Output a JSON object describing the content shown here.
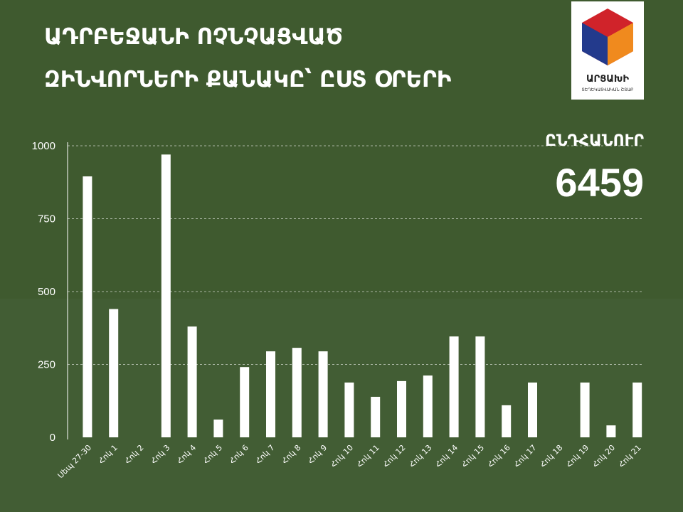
{
  "chart_data": {
    "type": "bar",
    "title": [
      "ԱԴՐԲԵՋԱՆԻ ՈՉՆՉԱՑՎԱԾ",
      "ԶԻՆՎՈՐՆԵՐԻ ՔԱՆԱԿԸ՝ ԸՍՏ ՕՐԵՐԻ"
    ],
    "total_label": "ԸՆԴՀԱՆՈՒՐ",
    "total": 6459,
    "categories": [
      "Սեպ 27-30",
      "Հոկ 1",
      "Հոկ 2",
      "Հոկ 3",
      "Հոկ 4",
      "Հոկ 5",
      "Հոկ 6",
      "Հոկ 7",
      "Հոկ 8",
      "Հոկ 9",
      "Հոկ 10",
      "Հոկ 11",
      "Հոկ 12",
      "Հոկ 13",
      "Հոկ 14",
      "Հոկ 15",
      "Հոկ 16",
      "Հոկ 17",
      "Հոկ 18",
      "Հոկ 19",
      "Հոկ 20",
      "Հոկ 21"
    ],
    "values": [
      895,
      440,
      null,
      970,
      380,
      61,
      241,
      295,
      307,
      295,
      188,
      139,
      193,
      212,
      346,
      346,
      110,
      188,
      null,
      188,
      41,
      188
    ],
    "color": "#ffffff",
    "ylim": [
      0,
      1000
    ],
    "yticks": [
      0,
      250,
      500,
      750,
      1000
    ],
    "grid": true
  },
  "logo": {
    "name": "ԱՐՑԱԽԻ",
    "subtitle": "ՏԵՂԵԿԱՏՎԱԿԱՆ ՇՏԱԲ"
  }
}
